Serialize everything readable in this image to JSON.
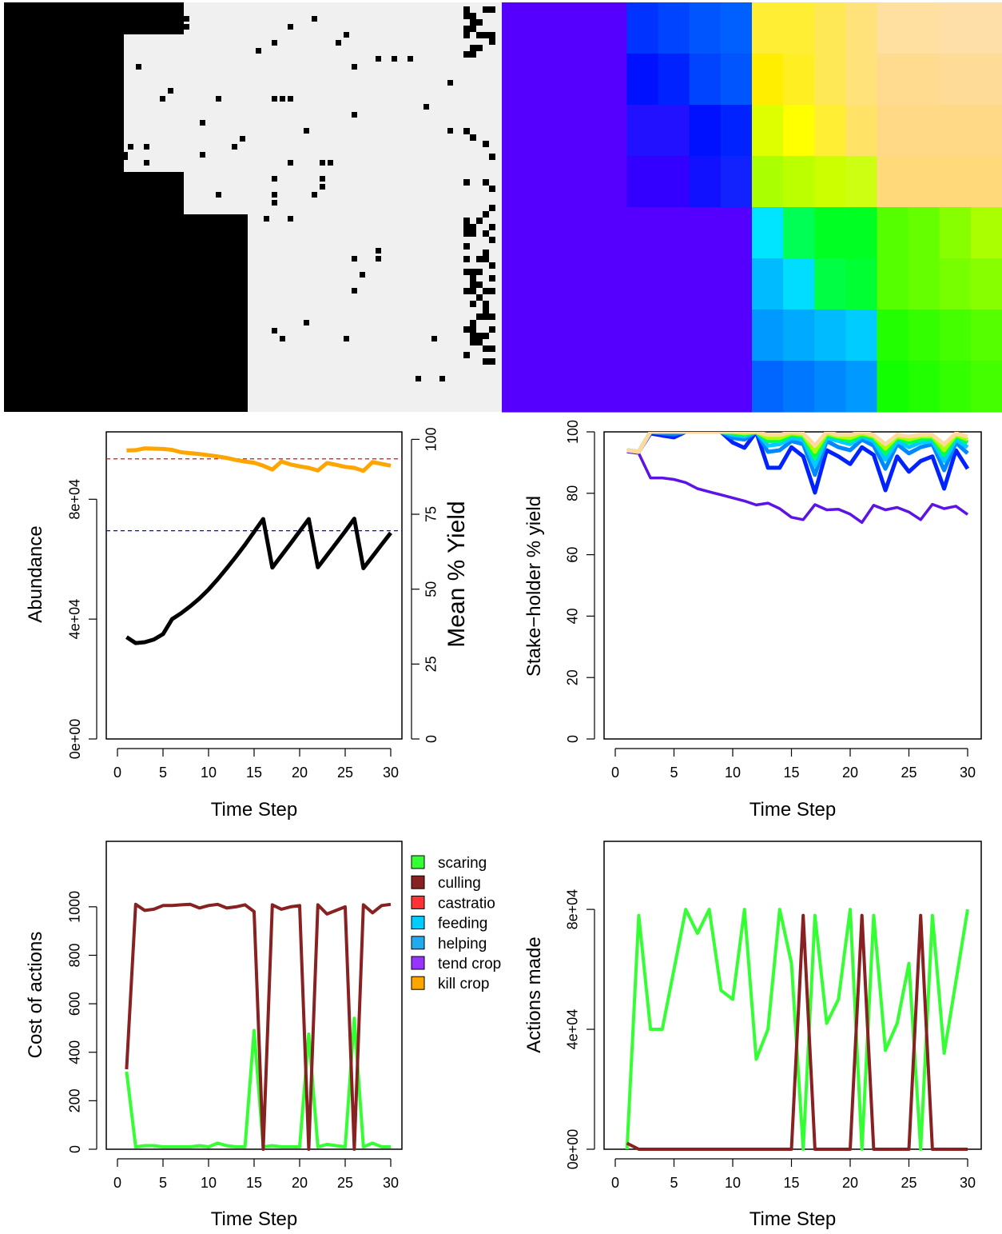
{
  "chart_data": [
    {
      "type": "heatmap",
      "panel": "landscape-ownership",
      "description_of_values": "binary black/light-grey ownership grid with scattered black cells",
      "colors": [
        "#000000",
        "#f0f0f0"
      ]
    },
    {
      "type": "heatmap",
      "panel": "landscape-yield",
      "colors": [
        "#5500ff",
        "#0000ff",
        "#0066ff",
        "#00e5ff",
        "#00ff33",
        "#b3ff00",
        "#ffff00",
        "#ffd9a0"
      ]
    },
    {
      "type": "line",
      "xlabel": "Time Step",
      "ylabel": "Abundance",
      "ylabel_right": "Mean % Yield",
      "xlim": [
        0,
        30
      ],
      "x_ticks": [
        "0",
        "5",
        "10",
        "15",
        "20",
        "25",
        "30"
      ],
      "ylim": [
        0,
        100000
      ],
      "y_ticks": [
        "0e+00",
        "4e+04",
        "8e+04"
      ],
      "ylim_right": [
        0,
        100
      ],
      "y_ticks_right": [
        "0",
        "25",
        "50",
        "75",
        "100"
      ],
      "series": [
        {
          "name": "",
          "axis": "left",
          "color": "#000000",
          "x": [
            1,
            2,
            3,
            4,
            5,
            6,
            7,
            8,
            9,
            10,
            11,
            12,
            13,
            14,
            15,
            16,
            17,
            18,
            19,
            20,
            21,
            22,
            23,
            24,
            25,
            26,
            27,
            28,
            29,
            30
          ],
          "values": [
            34000,
            32000,
            32300,
            33200,
            35000,
            40000,
            42000,
            44300,
            46900,
            49900,
            53300,
            57000,
            60800,
            64800,
            69100,
            73400,
            57200,
            61200,
            65200,
            69300,
            73400,
            57300,
            61300,
            65300,
            69300,
            73500,
            57000,
            60900,
            64900,
            68800
          ]
        },
        {
          "name": "",
          "axis": "right",
          "color": "#ffa500",
          "x": [
            1,
            2,
            3,
            4,
            5,
            6,
            7,
            8,
            9,
            10,
            11,
            12,
            13,
            14,
            15,
            16,
            17,
            18,
            19,
            20,
            21,
            22,
            23,
            24,
            25,
            26,
            27,
            28,
            29,
            30
          ],
          "values": [
            96.3,
            96.4,
            97.0,
            96.9,
            96.8,
            96.5,
            95.7,
            95.4,
            95.1,
            94.7,
            94.3,
            93.8,
            93.1,
            92.6,
            92.2,
            91.2,
            89.9,
            92.6,
            91.6,
            91.0,
            90.5,
            89.6,
            92.1,
            91.5,
            90.8,
            90.5,
            89.5,
            92.4,
            91.8,
            91.2
          ]
        }
      ],
      "reference_lines": [
        {
          "axis": "right",
          "value": 93.5,
          "color": "#ff0000",
          "style": "dashed"
        },
        {
          "axis": "right",
          "value": 69.5,
          "color": "#0000ff",
          "style": "dashed"
        }
      ],
      "grid": false
    },
    {
      "type": "line",
      "xlabel": "Time Step",
      "ylabel": "Stake−holder % yield",
      "xlim": [
        0,
        30
      ],
      "x_ticks": [
        "0",
        "5",
        "10",
        "15",
        "20",
        "25",
        "30"
      ],
      "ylim": [
        0,
        100
      ],
      "y_ticks": [
        "0",
        "20",
        "40",
        "60",
        "80",
        "100"
      ],
      "x": [
        1,
        2,
        3,
        4,
        5,
        6,
        7,
        8,
        9,
        10,
        11,
        12,
        13,
        14,
        15,
        16,
        17,
        18,
        19,
        20,
        21,
        22,
        23,
        24,
        25,
        26,
        27,
        28,
        29,
        30
      ],
      "series": [
        {
          "name": "",
          "color": "#5c13e6",
          "values": [
            93.5,
            93,
            85,
            85,
            84.5,
            83.5,
            81.5,
            80.5,
            79.5,
            78.5,
            77.5,
            76.2,
            76.8,
            75.0,
            72.2,
            71.4,
            76.3,
            74.6,
            74.8,
            73.2,
            70.5,
            76.1,
            74.6,
            75.4,
            73.9,
            71.4,
            76.4,
            75.0,
            75.8,
            73.1
          ]
        },
        {
          "name": "",
          "color": "#0022ff",
          "values": [
            94,
            93.5,
            99.5,
            98.8,
            98.2,
            100,
            100,
            100,
            100,
            96.5,
            94.8,
            100,
            88.3,
            88.3,
            95.0,
            92.0,
            80.2,
            94.0,
            92.0,
            89.5,
            95.0,
            92.5,
            81.0,
            92.0,
            87.0,
            90.5,
            92.0,
            81.5,
            94.0,
            88.0
          ]
        },
        {
          "name": "",
          "color": "#0088ff",
          "values": [
            94,
            93.5,
            100,
            99.5,
            99.2,
            100,
            100,
            100,
            100,
            98.0,
            97.5,
            100,
            93.5,
            94.0,
            97.0,
            96.0,
            86.0,
            97.0,
            95.0,
            94.0,
            97.5,
            95.5,
            88.0,
            96.0,
            93.0,
            95.0,
            96.0,
            87.5,
            96.5,
            93.0
          ]
        },
        {
          "name": "",
          "color": "#00ccff",
          "values": [
            94,
            93.5,
            100,
            100,
            100,
            100,
            100,
            100,
            100,
            99.0,
            98.5,
            100,
            95.5,
            96.0,
            98.0,
            97.5,
            89.0,
            98.0,
            97.0,
            96.0,
            98.5,
            97.0,
            91.0,
            97.0,
            95.0,
            96.5,
            97.0,
            90.5,
            97.5,
            95.0
          ]
        },
        {
          "name": "",
          "color": "#00ff55",
          "values": [
            94,
            93.5,
            100,
            100,
            100,
            100,
            100,
            100,
            100,
            99.5,
            99.0,
            100,
            97.0,
            97.0,
            99.0,
            98.5,
            91.5,
            99.0,
            98.0,
            97.0,
            99.0,
            98.0,
            93.0,
            98.0,
            96.5,
            97.5,
            98.0,
            92.5,
            98.5,
            96.5
          ]
        },
        {
          "name": "",
          "color": "#aaff00",
          "values": [
            94,
            93.5,
            100,
            100,
            100,
            100,
            100,
            100,
            100,
            100,
            99.5,
            100,
            98.0,
            98.0,
            99.5,
            99.0,
            93.5,
            99.5,
            98.5,
            98.0,
            99.5,
            98.5,
            94.5,
            98.5,
            97.5,
            98.5,
            98.5,
            94.0,
            99.0,
            97.5
          ]
        },
        {
          "name": "",
          "color": "#ffd9a0",
          "values": [
            94,
            93.5,
            100,
            100,
            100,
            100,
            100,
            100,
            100,
            100,
            100,
            100,
            99.0,
            99.0,
            100,
            99.5,
            95.5,
            100,
            99.0,
            99.0,
            100,
            99.0,
            96.0,
            99.0,
            98.5,
            99.0,
            99.0,
            96.0,
            99.5,
            98.5
          ]
        }
      ],
      "grid": false
    },
    {
      "type": "line",
      "xlabel": "Time Step",
      "ylabel": "Cost of actions",
      "xlim": [
        0,
        30
      ],
      "x_ticks": [
        "0",
        "5",
        "10",
        "15",
        "20",
        "25",
        "30"
      ],
      "ylim": [
        0,
        1100
      ],
      "y_ticks": [
        "0",
        "200",
        "400",
        "600",
        "800",
        "1000"
      ],
      "x": [
        1,
        2,
        3,
        4,
        5,
        6,
        7,
        8,
        9,
        10,
        11,
        12,
        13,
        14,
        15,
        16,
        17,
        18,
        19,
        20,
        21,
        22,
        23,
        24,
        25,
        26,
        27,
        28,
        29,
        30
      ],
      "series": [
        {
          "name": "scaring",
          "color": "#33ff33",
          "values": [
            320,
            10,
            15,
            15,
            10,
            10,
            10,
            10,
            15,
            10,
            25,
            15,
            10,
            10,
            490,
            10,
            15,
            10,
            10,
            10,
            475,
            10,
            20,
            15,
            10,
            540,
            10,
            25,
            10,
            10
          ]
        },
        {
          "name": "culling",
          "color": "#882222",
          "values": [
            330,
            1010,
            985,
            990,
            1005,
            1005,
            1008,
            1010,
            995,
            1005,
            1010,
            995,
            1000,
            1008,
            980,
            0,
            1008,
            990,
            1000,
            1005,
            0,
            1008,
            970,
            985,
            1000,
            0,
            1008,
            975,
            1005,
            1010
          ]
        }
      ],
      "legend": {
        "placement": "right",
        "items": [
          {
            "label": "scaring",
            "color": "#33ff33"
          },
          {
            "label": "culling",
            "color": "#882222"
          },
          {
            "label": "castratio",
            "color": "#ff3333"
          },
          {
            "label": "feeding",
            "color": "#00ccff"
          },
          {
            "label": "helping",
            "color": "#22aaee"
          },
          {
            "label": "tend crop",
            "color": "#9933ff"
          },
          {
            "label": "kill crop",
            "color": "#ffa500"
          }
        ]
      },
      "grid": false
    },
    {
      "type": "line",
      "xlabel": "Time Step",
      "ylabel": "Actions made",
      "xlim": [
        0,
        30
      ],
      "x_ticks": [
        "0",
        "5",
        "10",
        "15",
        "20",
        "25",
        "30"
      ],
      "ylim": [
        0,
        105000
      ],
      "y_ticks": [
        "0e+00",
        "4e+04",
        "8e+04"
      ],
      "x": [
        1,
        2,
        3,
        4,
        5,
        6,
        7,
        8,
        9,
        10,
        11,
        12,
        13,
        14,
        15,
        16,
        17,
        18,
        19,
        20,
        21,
        22,
        23,
        24,
        25,
        26,
        27,
        28,
        29,
        30
      ],
      "series": [
        {
          "name": "",
          "color": "#33ff33",
          "values": [
            0,
            78000,
            40000,
            40000,
            60000,
            80000,
            72000,
            80000,
            53000,
            50000,
            80000,
            30000,
            40000,
            80000,
            62000,
            0,
            78000,
            42000,
            50000,
            80000,
            0,
            78000,
            33000,
            42000,
            62000,
            0,
            78000,
            32000,
            56000,
            80000
          ]
        },
        {
          "name": "",
          "color": "#882222",
          "values": [
            2000,
            0,
            0,
            0,
            0,
            0,
            0,
            0,
            0,
            0,
            0,
            0,
            0,
            0,
            0,
            78000,
            0,
            0,
            0,
            0,
            78000,
            0,
            0,
            0,
            0,
            78000,
            0,
            0,
            0,
            0
          ]
        }
      ],
      "grid": false
    }
  ]
}
